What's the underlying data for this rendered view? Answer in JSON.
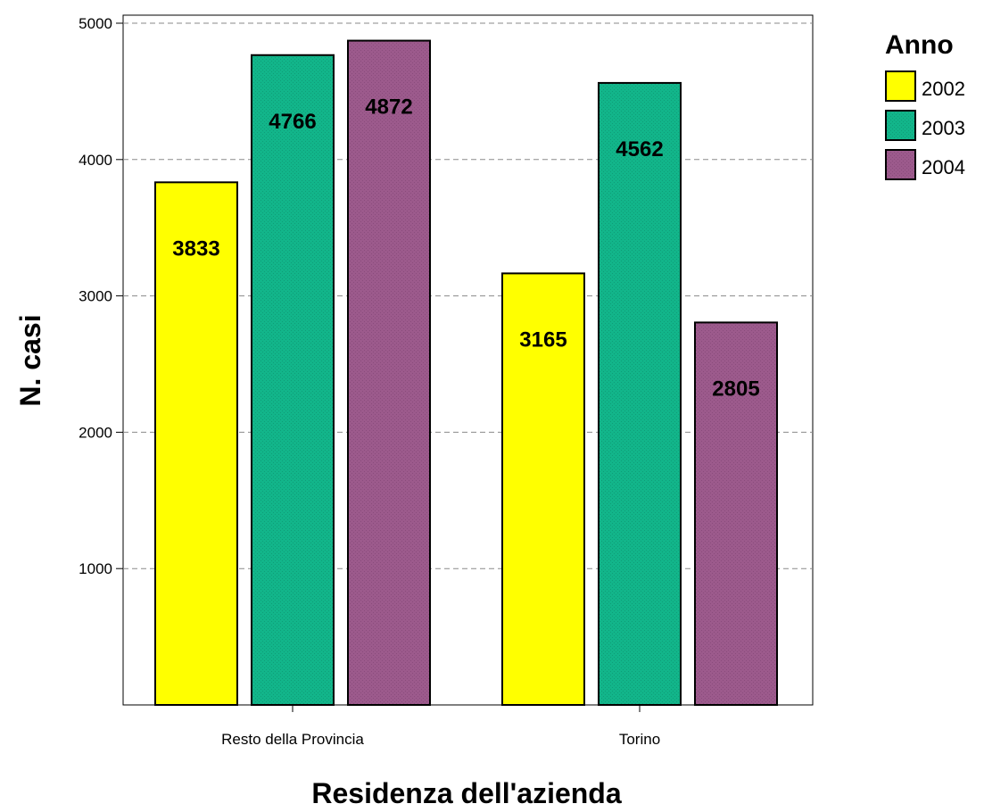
{
  "chart_data": {
    "type": "bar",
    "categories": [
      "Resto della Provincia",
      "Torino"
    ],
    "series": [
      {
        "name": "2002",
        "values": [
          3833,
          3165
        ],
        "color": "#ffff00"
      },
      {
        "name": "2003",
        "values": [
          4766,
          4562
        ],
        "color": "#12b58a"
      },
      {
        "name": "2004",
        "values": [
          4872,
          2805
        ],
        "color": "#9c5a8c"
      }
    ],
    "title": "",
    "xlabel": "Residenza dell'azienda",
    "ylabel": "N. casi",
    "ylim": [
      0,
      5000
    ],
    "yticks": [
      1000,
      2000,
      3000,
      4000,
      5000
    ],
    "grid": "horizontal dashed",
    "legend": {
      "title": "Anno",
      "placement": "right"
    },
    "data_labels": true
  }
}
